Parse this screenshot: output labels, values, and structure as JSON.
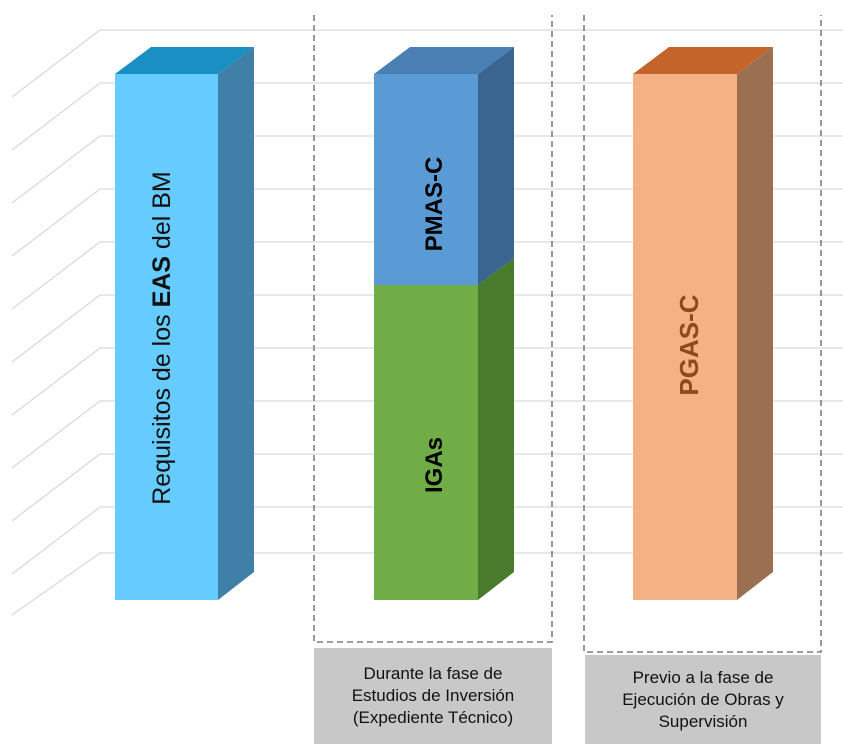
{
  "columns": [
    {
      "id": "eas",
      "label_parts": [
        {
          "text": "Requisitos de los ",
          "bold": false
        },
        {
          "text": "EAS",
          "bold": true
        },
        {
          "text": " del BM",
          "bold": false
        }
      ]
    },
    {
      "id": "estudios",
      "segments": [
        {
          "label": "IGAs",
          "label_color": "#000000",
          "colors": {
            "front": "#70ad47",
            "side": "#4a7a2c",
            "top": "#5a9a38"
          }
        },
        {
          "label": "PMAS-C",
          "label_color": "#000000",
          "colors": {
            "front": "#5b9bd5",
            "side": "#3a6590",
            "top": "#4a7fb3"
          }
        }
      ],
      "phase_lines": [
        "Durante la fase de",
        "Estudios de Inversión",
        "(Expediente Técnico)"
      ]
    },
    {
      "id": "ejecucion",
      "label": "PGAS-C",
      "label_color": "#8e4a1a",
      "phase_lines": [
        "Previo a la fase de",
        "Ejecución de Obras y",
        "Supervisión"
      ]
    }
  ],
  "colors": {
    "eas_front": "#66ccff",
    "eas_side": "#3f7fa8",
    "eas_top": "#1a8fc4",
    "pgas_front": "#f4b183",
    "pgas_side": "#9a7050",
    "pgas_top": "#c5642a",
    "grid": "#d9d9d9",
    "dashed_border": "#7f7f7f",
    "phase_box_bg": "#c8c8c8"
  }
}
